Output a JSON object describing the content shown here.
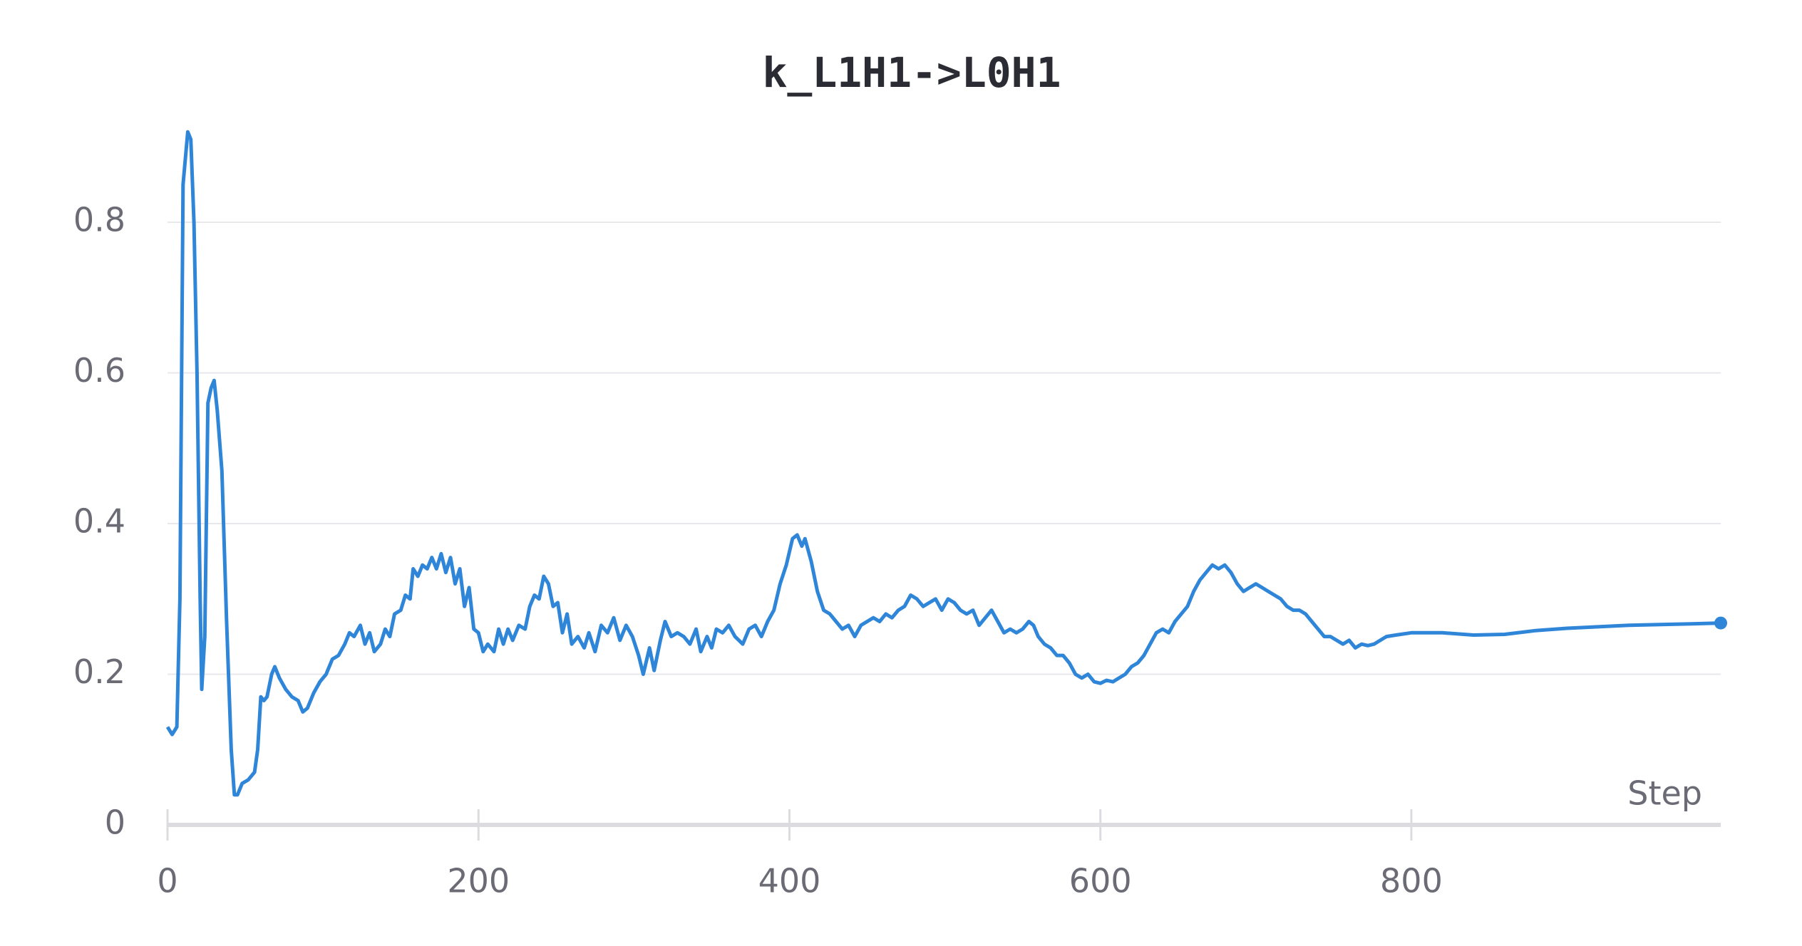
{
  "chart_data": {
    "type": "line",
    "title": "k_L1H1->L0H1",
    "xlabel": "Step",
    "color": "#2f86d8",
    "x": [
      0,
      3,
      6,
      8,
      10,
      13,
      15,
      17,
      19,
      21,
      22,
      24,
      26,
      28,
      30,
      32,
      35,
      38,
      41,
      43,
      45,
      48,
      52,
      56,
      58,
      60,
      62,
      64,
      67,
      69,
      72,
      76,
      80,
      84,
      87,
      90,
      94,
      98,
      102,
      106,
      110,
      114,
      117,
      120,
      124,
      127,
      130,
      133,
      137,
      140,
      143,
      146,
      150,
      153,
      156,
      158,
      161,
      164,
      167,
      170,
      173,
      176,
      179,
      182,
      185,
      188,
      191,
      194,
      197,
      200,
      203,
      206,
      210,
      213,
      216,
      219,
      222,
      226,
      230,
      233,
      236,
      239,
      242,
      245,
      248,
      251,
      254,
      257,
      260,
      264,
      268,
      271,
      275,
      279,
      283,
      287,
      291,
      295,
      299,
      303,
      306,
      310,
      313,
      317,
      320,
      324,
      328,
      332,
      336,
      340,
      343,
      347,
      350,
      353,
      357,
      361,
      365,
      370,
      374,
      378,
      382,
      386,
      390,
      394,
      398,
      402,
      405,
      408,
      410,
      414,
      418,
      422,
      426,
      430,
      434,
      438,
      442,
      446,
      450,
      454,
      458,
      462,
      466,
      470,
      474,
      478,
      482,
      486,
      490,
      494,
      498,
      502,
      506,
      510,
      514,
      518,
      522,
      526,
      530,
      534,
      538,
      542,
      546,
      550,
      554,
      557,
      560,
      564,
      568,
      572,
      576,
      580,
      584,
      588,
      592,
      596,
      600,
      604,
      608,
      612,
      616,
      620,
      624,
      628,
      632,
      636,
      640,
      644,
      648,
      652,
      656,
      660,
      664,
      668,
      672,
      676,
      680,
      684,
      688,
      692,
      696,
      700,
      704,
      708,
      712,
      716,
      720,
      724,
      728,
      732,
      736,
      740,
      744,
      748,
      752,
      756,
      760,
      764,
      768,
      772,
      776,
      780,
      784,
      790,
      800,
      820,
      840,
      860,
      880,
      900,
      920,
      940,
      960,
      980,
      999
    ],
    "values": [
      0.13,
      0.12,
      0.13,
      0.3,
      0.85,
      0.92,
      0.91,
      0.8,
      0.6,
      0.3,
      0.18,
      0.25,
      0.56,
      0.58,
      0.59,
      0.55,
      0.47,
      0.27,
      0.1,
      0.04,
      0.04,
      0.055,
      0.06,
      0.07,
      0.1,
      0.17,
      0.165,
      0.17,
      0.2,
      0.21,
      0.195,
      0.18,
      0.17,
      0.165,
      0.15,
      0.155,
      0.175,
      0.19,
      0.2,
      0.22,
      0.225,
      0.24,
      0.255,
      0.25,
      0.265,
      0.24,
      0.255,
      0.23,
      0.24,
      0.26,
      0.25,
      0.28,
      0.285,
      0.305,
      0.3,
      0.34,
      0.33,
      0.345,
      0.34,
      0.355,
      0.34,
      0.36,
      0.335,
      0.355,
      0.32,
      0.34,
      0.29,
      0.315,
      0.26,
      0.255,
      0.23,
      0.24,
      0.23,
      0.26,
      0.24,
      0.26,
      0.245,
      0.265,
      0.26,
      0.29,
      0.305,
      0.3,
      0.33,
      0.32,
      0.29,
      0.295,
      0.255,
      0.28,
      0.24,
      0.25,
      0.235,
      0.255,
      0.23,
      0.265,
      0.255,
      0.275,
      0.245,
      0.265,
      0.25,
      0.225,
      0.2,
      0.235,
      0.205,
      0.245,
      0.27,
      0.25,
      0.255,
      0.25,
      0.24,
      0.26,
      0.23,
      0.25,
      0.235,
      0.26,
      0.255,
      0.265,
      0.25,
      0.24,
      0.26,
      0.265,
      0.25,
      0.27,
      0.285,
      0.32,
      0.345,
      0.38,
      0.385,
      0.37,
      0.38,
      0.35,
      0.31,
      0.285,
      0.28,
      0.27,
      0.26,
      0.265,
      0.25,
      0.265,
      0.27,
      0.275,
      0.27,
      0.28,
      0.275,
      0.285,
      0.29,
      0.305,
      0.3,
      0.29,
      0.295,
      0.3,
      0.285,
      0.3,
      0.295,
      0.285,
      0.28,
      0.285,
      0.265,
      0.275,
      0.285,
      0.27,
      0.255,
      0.26,
      0.255,
      0.26,
      0.27,
      0.265,
      0.25,
      0.24,
      0.235,
      0.225,
      0.225,
      0.215,
      0.2,
      0.195,
      0.2,
      0.19,
      0.188,
      0.192,
      0.19,
      0.195,
      0.2,
      0.21,
      0.215,
      0.225,
      0.24,
      0.255,
      0.26,
      0.255,
      0.27,
      0.28,
      0.29,
      0.31,
      0.325,
      0.335,
      0.345,
      0.34,
      0.345,
      0.335,
      0.32,
      0.31,
      0.315,
      0.32,
      0.315,
      0.31,
      0.305,
      0.3,
      0.29,
      0.285,
      0.285,
      0.28,
      0.27,
      0.26,
      0.25,
      0.25,
      0.245,
      0.24,
      0.245,
      0.235,
      0.24,
      0.238,
      0.24,
      0.245,
      0.25,
      0.252,
      0.255,
      0.255,
      0.252,
      0.253,
      0.258,
      0.261,
      0.263,
      0.265,
      0.266,
      0.267,
      0.268
    ],
    "xlim": [
      0,
      999
    ],
    "ylim": [
      0,
      0.95
    ],
    "xticks": [
      0,
      200,
      400,
      600,
      800
    ],
    "yticks": [
      0,
      0.2,
      0.4,
      0.6,
      0.8
    ],
    "grid": true
  }
}
